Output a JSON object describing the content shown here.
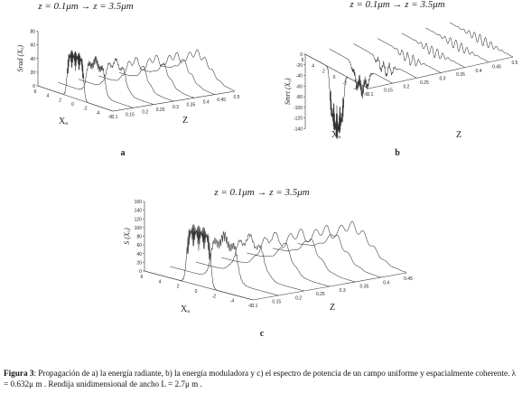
{
  "panels": [
    {
      "title": "z =  0.1μm → z = 3.5μm",
      "y_label": "Srad (Xₐ)",
      "x_label": "Xₐ",
      "z_label": "Z",
      "letter": "a",
      "yticks": [
        "0",
        "20",
        "40",
        "60",
        "80"
      ],
      "xticks": [
        "6",
        "4",
        "2",
        "0",
        "-2",
        "-4",
        "-6"
      ],
      "zticks": [
        "0.1",
        "0.15",
        "0.2",
        "0.25",
        "0.3",
        "0.35",
        "0.4",
        "0.45",
        "0.5"
      ]
    },
    {
      "title": "z =  0.1μm → z = 3.5μm",
      "y_label": "Smrt (Xₐ)",
      "x_label": "Xₐ",
      "z_label": "Z",
      "letter": "b",
      "yticks": [
        "0",
        "-20",
        "-40",
        "-60",
        "-80",
        "-100",
        "-120",
        "-140"
      ],
      "xticks": [
        "6",
        "4",
        "2",
        "0",
        "-2",
        "-4",
        "-6"
      ],
      "zticks": [
        "0.1",
        "0.15",
        "0.2",
        "0.25",
        "0.3",
        "0.35",
        "0.4",
        "0.45",
        "0.5"
      ]
    },
    {
      "title": "z =  0.1μm → z = 3.5μm",
      "y_label": "S (Xₐ)",
      "x_label": "Xₐ",
      "z_label": "Z",
      "letter": "c",
      "yticks": [
        "0",
        "20",
        "40",
        "60",
        "80",
        "100",
        "120",
        "140",
        "160"
      ],
      "xticks": [
        "6",
        "4",
        "2",
        "0",
        "-2",
        "-4",
        "-6"
      ],
      "zticks": [
        "0.1",
        "0.15",
        "0.2",
        "0.25",
        "0.3",
        "0.35",
        "0.4",
        "0.45"
      ]
    }
  ],
  "caption": {
    "label": "Figura 3",
    "text": ": Propagación de a) la energía radiante, b) la energía moduladora y c) el espectro de potencia de un campo uniforme y espacialmente coherente.  λ = 0.632μ m . Rendija unidimensional de ancho  L = 2.7μ m ."
  }
}
